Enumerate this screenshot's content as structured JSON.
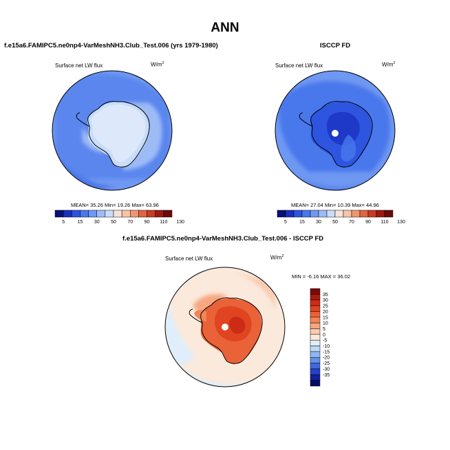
{
  "chart_data": [
    {
      "type": "heatmap",
      "projection": "south-polar-stereographic",
      "title": "f.e15a6.FAMIPC5.ne0np4-VarMeshNH3.Club_Test.006 (yrs 1979-1980)",
      "variable": "Surface net LW flux",
      "units": "W/m",
      "units_sup": "2",
      "stats": "MEAN= 35.26 Min= 19.26 Max= 63.96",
      "legend_position": "bottom",
      "levels": [
        "5",
        "15",
        "30",
        "50",
        "70",
        "90",
        "110",
        "130"
      ]
    },
    {
      "type": "heatmap",
      "projection": "south-polar-stereographic",
      "title": "ISCCP FD",
      "variable": "Surface net LW flux",
      "units": "W/m",
      "units_sup": "2",
      "stats": "MEAN= 27.04 Min= 10.39 Max= 44.96",
      "legend_position": "bottom",
      "levels": [
        "5",
        "15",
        "30",
        "50",
        "70",
        "90",
        "110",
        "130"
      ]
    },
    {
      "type": "heatmap",
      "projection": "south-polar-stereographic",
      "title": "f.e15a6.FAMIPC5.ne0np4-VarMeshNH3.Club_Test.006 - ISCCP FD",
      "variable": "Surface net LW flux",
      "units": "W/m",
      "units_sup": "2",
      "stats": "MIN = -6.16 MAX = 36.02",
      "legend_position": "right",
      "levels": [
        "35",
        "30",
        "25",
        "20",
        "15",
        "10",
        "5",
        "0",
        "-5",
        "-10",
        "-15",
        "-20",
        "-25",
        "-30",
        "-35"
      ]
    }
  ],
  "page": {
    "title": "ANN"
  },
  "colors": {
    "abs_scale": [
      "#08107a",
      "#1a2fc0",
      "#2e55e0",
      "#4878ec",
      "#6f98f2",
      "#9dbcf6",
      "#c9ddf9",
      "#f7e3d6",
      "#f7c4a8",
      "#f09570",
      "#e06542",
      "#c93c22",
      "#9a1a12",
      "#6b0a0a"
    ],
    "diff_scale": [
      "#7a0a0a",
      "#a81a12",
      "#cc2b16",
      "#e04420",
      "#ea6238",
      "#f28457",
      "#f6a781",
      "#f9cbb0",
      "#fbe9dc",
      "#dfeefa",
      "#bcd8f6",
      "#8eb6f0",
      "#6690e8",
      "#4268de",
      "#2440c8",
      "#12209a",
      "#070c66"
    ]
  }
}
